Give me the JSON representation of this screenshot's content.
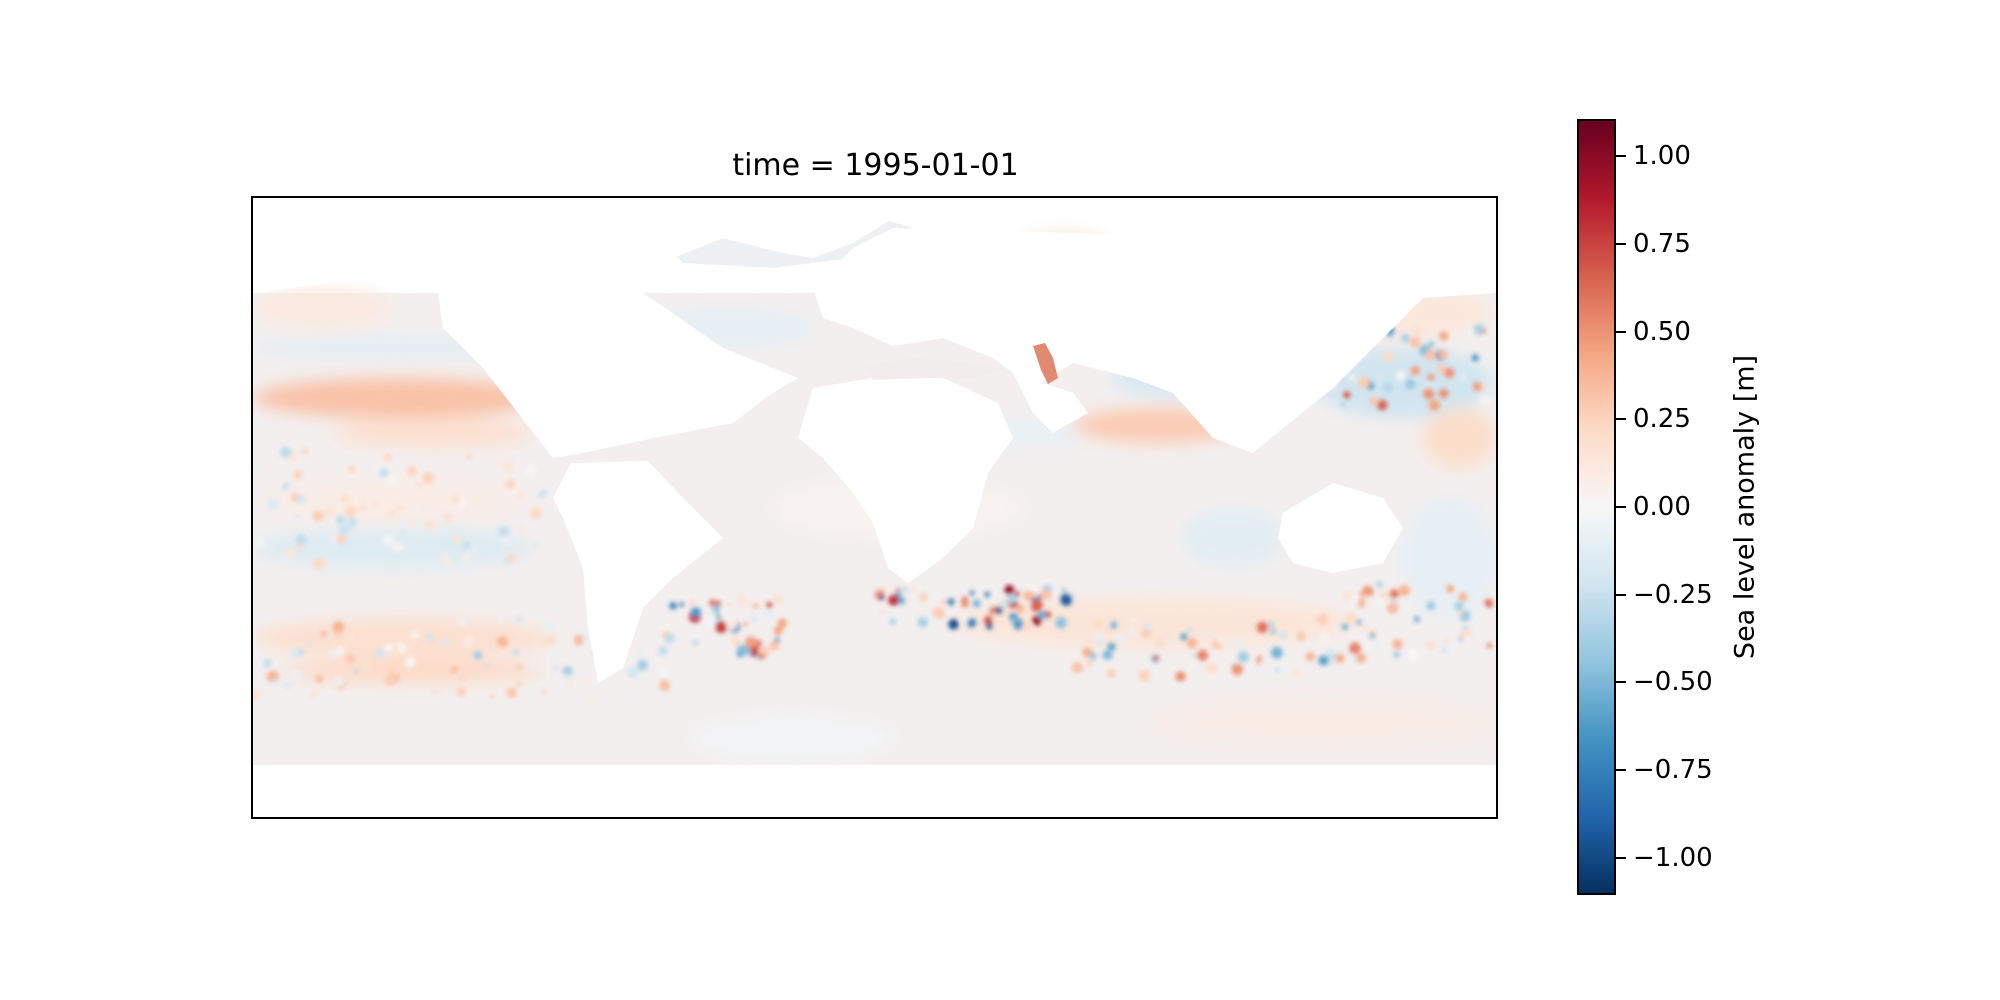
{
  "title": "time = 1995-01-01",
  "colorbar": {
    "label": "Sea level anomaly [m]",
    "range": [
      -1.1,
      1.1
    ],
    "colormap": "RdBu_r",
    "ticks": [
      1.0,
      0.75,
      0.5,
      0.25,
      0.0,
      -0.25,
      -0.5,
      -0.75,
      -1.0
    ],
    "tick_labels": [
      "1.00",
      "0.75",
      "0.50",
      "0.25",
      "0.00",
      "−0.25",
      "−0.50",
      "−0.75",
      "−1.00"
    ],
    "colors": [
      "#053061",
      "#2166ac",
      "#4393c3",
      "#92c5de",
      "#d1e5f0",
      "#f7f7f7",
      "#fddbc7",
      "#f4a582",
      "#d6604d",
      "#b2182b",
      "#67001f"
    ]
  },
  "map": {
    "projection": "plate carree",
    "land_color": "#ffffff",
    "ocean_background": "#f3efef",
    "features": [
      {
        "name": "Equatorial Pacific positive band",
        "value": 0.3
      },
      {
        "name": "Gulf Stream eddies",
        "value": 0.8
      },
      {
        "name": "Agulhas retroflection eddies",
        "value": -0.9
      },
      {
        "name": "Caspian Sea",
        "value": 0.55
      },
      {
        "name": "Western North Pacific negative anomaly",
        "value": -0.25
      },
      {
        "name": "Southern Ocean eddy band",
        "value": 0.4
      }
    ]
  }
}
